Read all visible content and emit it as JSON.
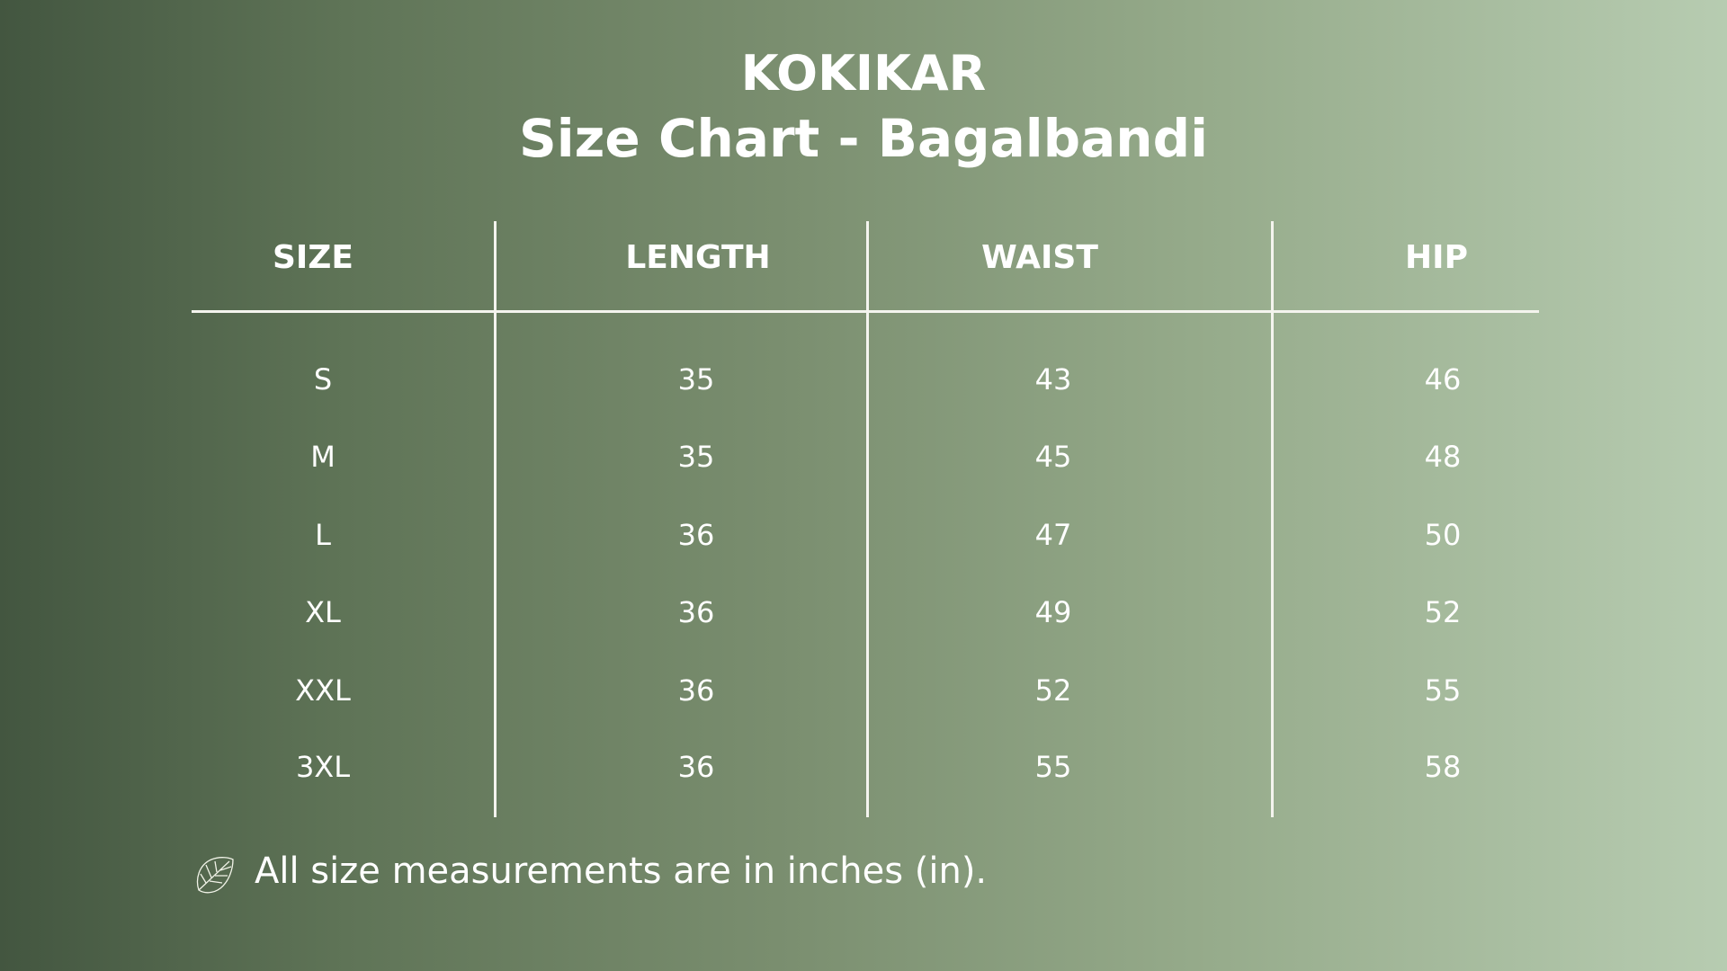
{
  "brand": "KOKIKAR",
  "title": "Size Chart - Bagalbandi",
  "table": {
    "headers": [
      "SIZE",
      "LENGTH",
      "WAIST",
      "HIP"
    ],
    "rows": [
      [
        "S",
        "35",
        "43",
        "46"
      ],
      [
        "M",
        "35",
        "45",
        "48"
      ],
      [
        "L",
        "36",
        "47",
        "50"
      ],
      [
        "XL",
        "36",
        "49",
        "52"
      ],
      [
        "XXL",
        "36",
        "52",
        "55"
      ],
      [
        "3XL",
        "36",
        "55",
        "58"
      ]
    ]
  },
  "footer": {
    "icon": "monstera-leaf-icon",
    "note": "All size measurements are in inches (in)."
  },
  "colors": {
    "gradient_start": "#435640",
    "gradient_end": "#b7ccb1",
    "text": "#ffffff"
  }
}
